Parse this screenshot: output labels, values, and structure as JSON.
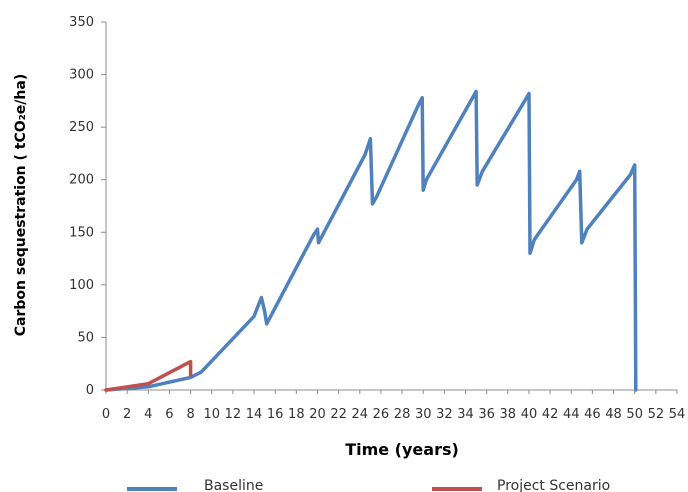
{
  "chart_data": {
    "type": "line",
    "xlabel": "Time (years)",
    "ylabel": "Carbon sequestration ( tCO₂e/ha)",
    "xlim": [
      0,
      54
    ],
    "ylim": [
      0,
      350
    ],
    "x_ticks": [
      "0",
      "2",
      "4",
      "6",
      "8",
      "10",
      "12",
      "14",
      "16",
      "18",
      "20",
      "22",
      "24",
      "26",
      "28",
      "30",
      "32",
      "34",
      "36",
      "38",
      "40",
      "42",
      "44",
      "46",
      "48",
      "50",
      "52",
      "54"
    ],
    "y_ticks": [
      "0",
      "50",
      "100",
      "150",
      "200",
      "250",
      "300",
      "350"
    ],
    "grid": false,
    "legend_position": "bottom",
    "series": [
      {
        "name": "Baseline",
        "color": "#4f81bd",
        "x": [
          0,
          4,
          8,
          9,
          14,
          14.7,
          15,
          15.2,
          19.6,
          20,
          20.1,
          24.5,
          25,
          25.2,
          25.6,
          29.5,
          29.9,
          30,
          30.3,
          34.5,
          35,
          35.1,
          35.6,
          39.6,
          40,
          40.1,
          40.5,
          44.5,
          44.8,
          45,
          45.5,
          49.6,
          50,
          50.1
        ],
        "y": [
          0,
          3,
          12,
          17,
          70,
          88,
          75,
          63,
          147,
          153,
          140,
          224,
          239,
          177,
          184,
          270,
          278,
          190,
          200,
          275,
          284,
          195,
          208,
          275,
          282,
          130,
          143,
          200,
          208,
          140,
          153,
          205,
          214,
          0
        ]
      },
      {
        "name": "Project Scenario",
        "color": "#c0504d",
        "x": [
          0,
          4,
          8,
          8
        ],
        "y": [
          0,
          6,
          27,
          14
        ]
      }
    ],
    "legend": [
      "Baseline",
      "Project Scenario"
    ]
  }
}
